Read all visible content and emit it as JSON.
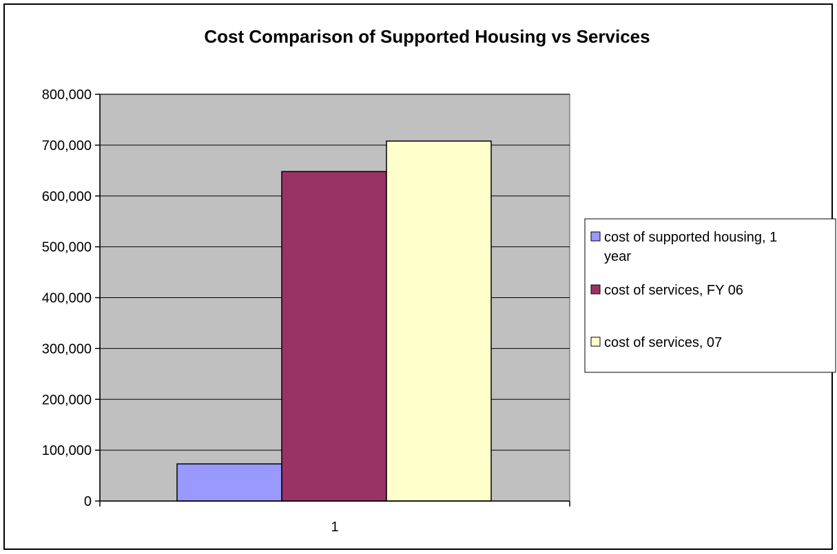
{
  "chart_data": {
    "type": "bar",
    "title": "Cost Comparison of Supported Housing vs Services",
    "xlabel": "",
    "ylabel": "",
    "categories": [
      "1"
    ],
    "ylim": [
      0,
      800000
    ],
    "y_ticks": [
      "0",
      "100,000",
      "200,000",
      "300,000",
      "400,000",
      "500,000",
      "600,000",
      "700,000",
      "800,000"
    ],
    "y_tick_values": [
      0,
      100000,
      200000,
      300000,
      400000,
      500000,
      600000,
      700000,
      800000
    ],
    "grid": true,
    "legend_position": "right",
    "plot_background": "#c0c0c0",
    "series": [
      {
        "name": "cost of supported housing, 1 year",
        "legend_lines": [
          "cost of supported housing, 1",
          "year"
        ],
        "values": [
          73000
        ],
        "color": "#9999ff"
      },
      {
        "name": "cost of services, FY 06",
        "legend_lines": [
          "cost of services, FY 06"
        ],
        "values": [
          648000
        ],
        "color": "#993366"
      },
      {
        "name": "cost of services, 07",
        "legend_lines": [
          "cost of services, 07"
        ],
        "values": [
          708000
        ],
        "color": "#ffffcc"
      }
    ]
  }
}
